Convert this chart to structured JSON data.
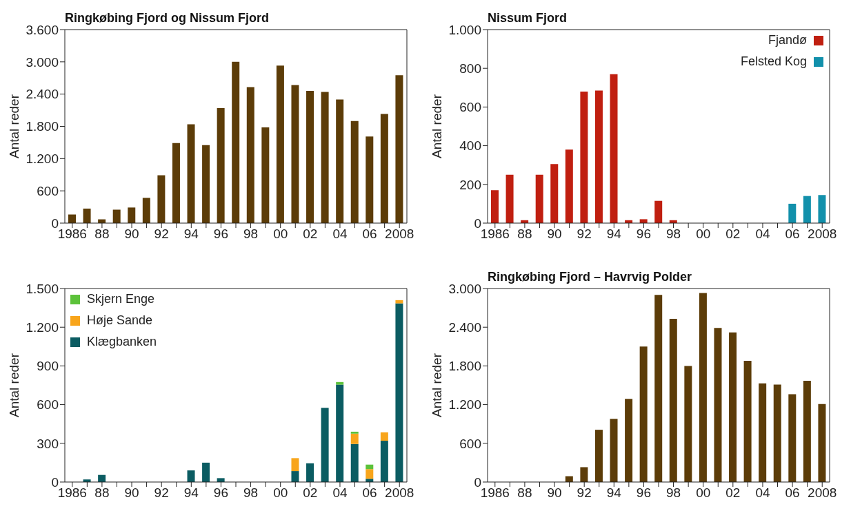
{
  "chart_data": [
    {
      "type": "bar",
      "title": "Ringkøbing Fjord og Nissum Fjord",
      "ylabel": "Antal reder",
      "categories": [
        "1986",
        null,
        "88",
        null,
        "90",
        null,
        "92",
        null,
        "94",
        null,
        "96",
        null,
        "98",
        null,
        "00",
        null,
        "02",
        null,
        "04",
        null,
        "06",
        null,
        "2008"
      ],
      "series": [
        {
          "color": "#5c3c08",
          "values": [
            160,
            270,
            70,
            250,
            290,
            470,
            890,
            1490,
            1840,
            1450,
            2140,
            3000,
            2530,
            1780,
            2930,
            2570,
            2460,
            2440,
            2300,
            1900,
            1610,
            2030,
            2750
          ]
        }
      ],
      "ylim": [
        0,
        3600
      ],
      "yticks": [
        0,
        600,
        {
          "value": 1200,
          "label": "1.200"
        },
        {
          "value": 1800,
          "label": "1.800"
        },
        {
          "value": 2400,
          "label": "2.400"
        },
        {
          "value": 3000,
          "label": "3.000"
        },
        {
          "value": 3600,
          "label": "3.600"
        }
      ],
      "grid": false
    },
    {
      "type": "bar",
      "title": "Nissum Fjord",
      "ylabel": "Antal reder",
      "categories": [
        "1986",
        null,
        "88",
        null,
        "90",
        null,
        "92",
        null,
        "94",
        null,
        "96",
        null,
        "98",
        null,
        "00",
        null,
        "02",
        null,
        "04",
        null,
        "06",
        null,
        "2008"
      ],
      "stacked": true,
      "legend": "top right",
      "series": [
        {
          "name": "Felsted Kog",
          "color": "#1290ab",
          "values": [
            0,
            0,
            0,
            0,
            0,
            0,
            0,
            0,
            0,
            0,
            0,
            0,
            0,
            0,
            0,
            0,
            0,
            0,
            0,
            0,
            100,
            140,
            145
          ]
        },
        {
          "name": "Fjandø",
          "color": "#c01f10",
          "values": [
            170,
            250,
            15,
            250,
            305,
            380,
            680,
            685,
            770,
            15,
            20,
            115,
            15,
            0,
            null,
            0,
            0,
            0,
            0,
            0,
            0,
            0,
            0
          ]
        }
      ],
      "ylim": [
        0,
        1000
      ],
      "yticks": [
        0,
        200,
        400,
        600,
        800,
        {
          "value": 1000,
          "label": "1.000"
        }
      ],
      "grid": false
    },
    {
      "type": "bar",
      "ylabel": "Antal reder",
      "categories": [
        "1986",
        null,
        "88",
        null,
        "90",
        null,
        "92",
        null,
        "94",
        null,
        "96",
        null,
        "98",
        null,
        "00",
        null,
        "02",
        null,
        "04",
        null,
        "06",
        null,
        "2008"
      ],
      "stacked": true,
      "legend": "top left",
      "series": [
        {
          "name": "Klægbanken",
          "color": "#0b5c62",
          "values": [
            0,
            20,
            55,
            0,
            0,
            0,
            0,
            0,
            90,
            150,
            30,
            0,
            0,
            0,
            0,
            85,
            145,
            575,
            755,
            295,
            25,
            320,
            1385
          ]
        },
        {
          "name": "Høje Sande",
          "color": "#f8a51b",
          "values": [
            0,
            0,
            0,
            0,
            0,
            0,
            0,
            0,
            0,
            0,
            0,
            0,
            0,
            0,
            0,
            100,
            0,
            0,
            0,
            80,
            75,
            65,
            25
          ]
        },
        {
          "name": "Skjern Enge",
          "color": "#5cc23a",
          "values": [
            0,
            0,
            0,
            0,
            0,
            0,
            0,
            0,
            0,
            0,
            0,
            0,
            0,
            0,
            0,
            0,
            0,
            0,
            20,
            15,
            35,
            0,
            0
          ]
        }
      ],
      "ylim": [
        0,
        1500
      ],
      "yticks": [
        0,
        300,
        600,
        900,
        {
          "value": 1200,
          "label": "1.200"
        },
        {
          "value": 1500,
          "label": "1.500"
        }
      ],
      "grid": false
    },
    {
      "type": "bar",
      "title": "Ringkøbing Fjord – Havrvig Polder",
      "ylabel": "Antal reder",
      "categories": [
        "1986",
        null,
        "88",
        null,
        "90",
        null,
        "92",
        null,
        "94",
        null,
        "96",
        null,
        "98",
        null,
        "00",
        null,
        "02",
        null,
        "04",
        null,
        "06",
        null,
        "2008"
      ],
      "series": [
        {
          "color": "#5c3c08",
          "values": [
            0,
            0,
            0,
            0,
            0,
            90,
            230,
            810,
            980,
            1290,
            2100,
            2900,
            2530,
            1800,
            2930,
            2390,
            2320,
            1880,
            1530,
            1510,
            1360,
            1570,
            1210
          ]
        }
      ],
      "ylim": [
        0,
        3000
      ],
      "yticks": [
        0,
        600,
        {
          "value": 1200,
          "label": "1.200"
        },
        {
          "value": 1800,
          "label": "1.800"
        },
        {
          "value": 2400,
          "label": "2.400"
        },
        {
          "value": 3000,
          "label": "3.000"
        }
      ],
      "grid": false
    }
  ]
}
